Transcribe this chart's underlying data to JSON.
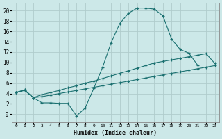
{
  "xlabel": "Humidex (Indice chaleur)",
  "bg_color": "#cce8e8",
  "grid_color": "#b8d8d8",
  "line_color": "#1a7070",
  "xlim": [
    -0.5,
    23.5
  ],
  "ylim": [
    -1.5,
    21.5
  ],
  "xticks": [
    0,
    1,
    2,
    3,
    4,
    5,
    6,
    7,
    8,
    9,
    10,
    11,
    12,
    13,
    14,
    15,
    16,
    17,
    18,
    19,
    20,
    21,
    22,
    23
  ],
  "yticks": [
    0,
    2,
    4,
    6,
    8,
    10,
    12,
    14,
    16,
    18,
    20
  ],
  "ytick_labels": [
    "-0",
    "2",
    "4",
    "6",
    "8",
    "10",
    "12",
    "14",
    "16",
    "18",
    "20"
  ],
  "curve1_x": [
    0,
    1,
    2,
    3,
    4,
    5,
    6,
    7,
    8,
    9,
    10,
    11,
    12,
    13,
    14,
    15,
    16,
    17,
    18,
    19,
    20,
    21
  ],
  "curve1_y": [
    4.2,
    4.6,
    3.2,
    2.2,
    2.2,
    2.1,
    2.1,
    -0.3,
    1.2,
    5.0,
    9.0,
    13.8,
    17.5,
    19.5,
    20.5,
    20.5,
    20.3,
    19.0,
    14.5,
    12.5,
    11.8,
    9.5
  ],
  "curve2_x": [
    0,
    1,
    2,
    3,
    4,
    5,
    6,
    7,
    8,
    9,
    10,
    11,
    12,
    13,
    14,
    15,
    16,
    17,
    18,
    19,
    20,
    21,
    22,
    23
  ],
  "curve2_y": [
    4.2,
    4.7,
    3.2,
    3.8,
    4.2,
    4.6,
    5.1,
    5.5,
    6.0,
    6.4,
    6.9,
    7.4,
    7.9,
    8.4,
    8.9,
    9.4,
    9.9,
    10.2,
    10.5,
    10.8,
    11.1,
    11.4,
    11.7,
    9.8
  ],
  "curve3_x": [
    0,
    1,
    2,
    3,
    4,
    5,
    6,
    7,
    8,
    9,
    10,
    11,
    12,
    13,
    14,
    15,
    16,
    17,
    18,
    19,
    20,
    21,
    22,
    23
  ],
  "curve3_y": [
    4.2,
    4.7,
    3.2,
    3.4,
    3.7,
    4.0,
    4.3,
    4.6,
    4.9,
    5.2,
    5.5,
    5.8,
    6.1,
    6.4,
    6.7,
    7.0,
    7.3,
    7.6,
    7.9,
    8.2,
    8.5,
    8.8,
    9.1,
    9.4
  ]
}
